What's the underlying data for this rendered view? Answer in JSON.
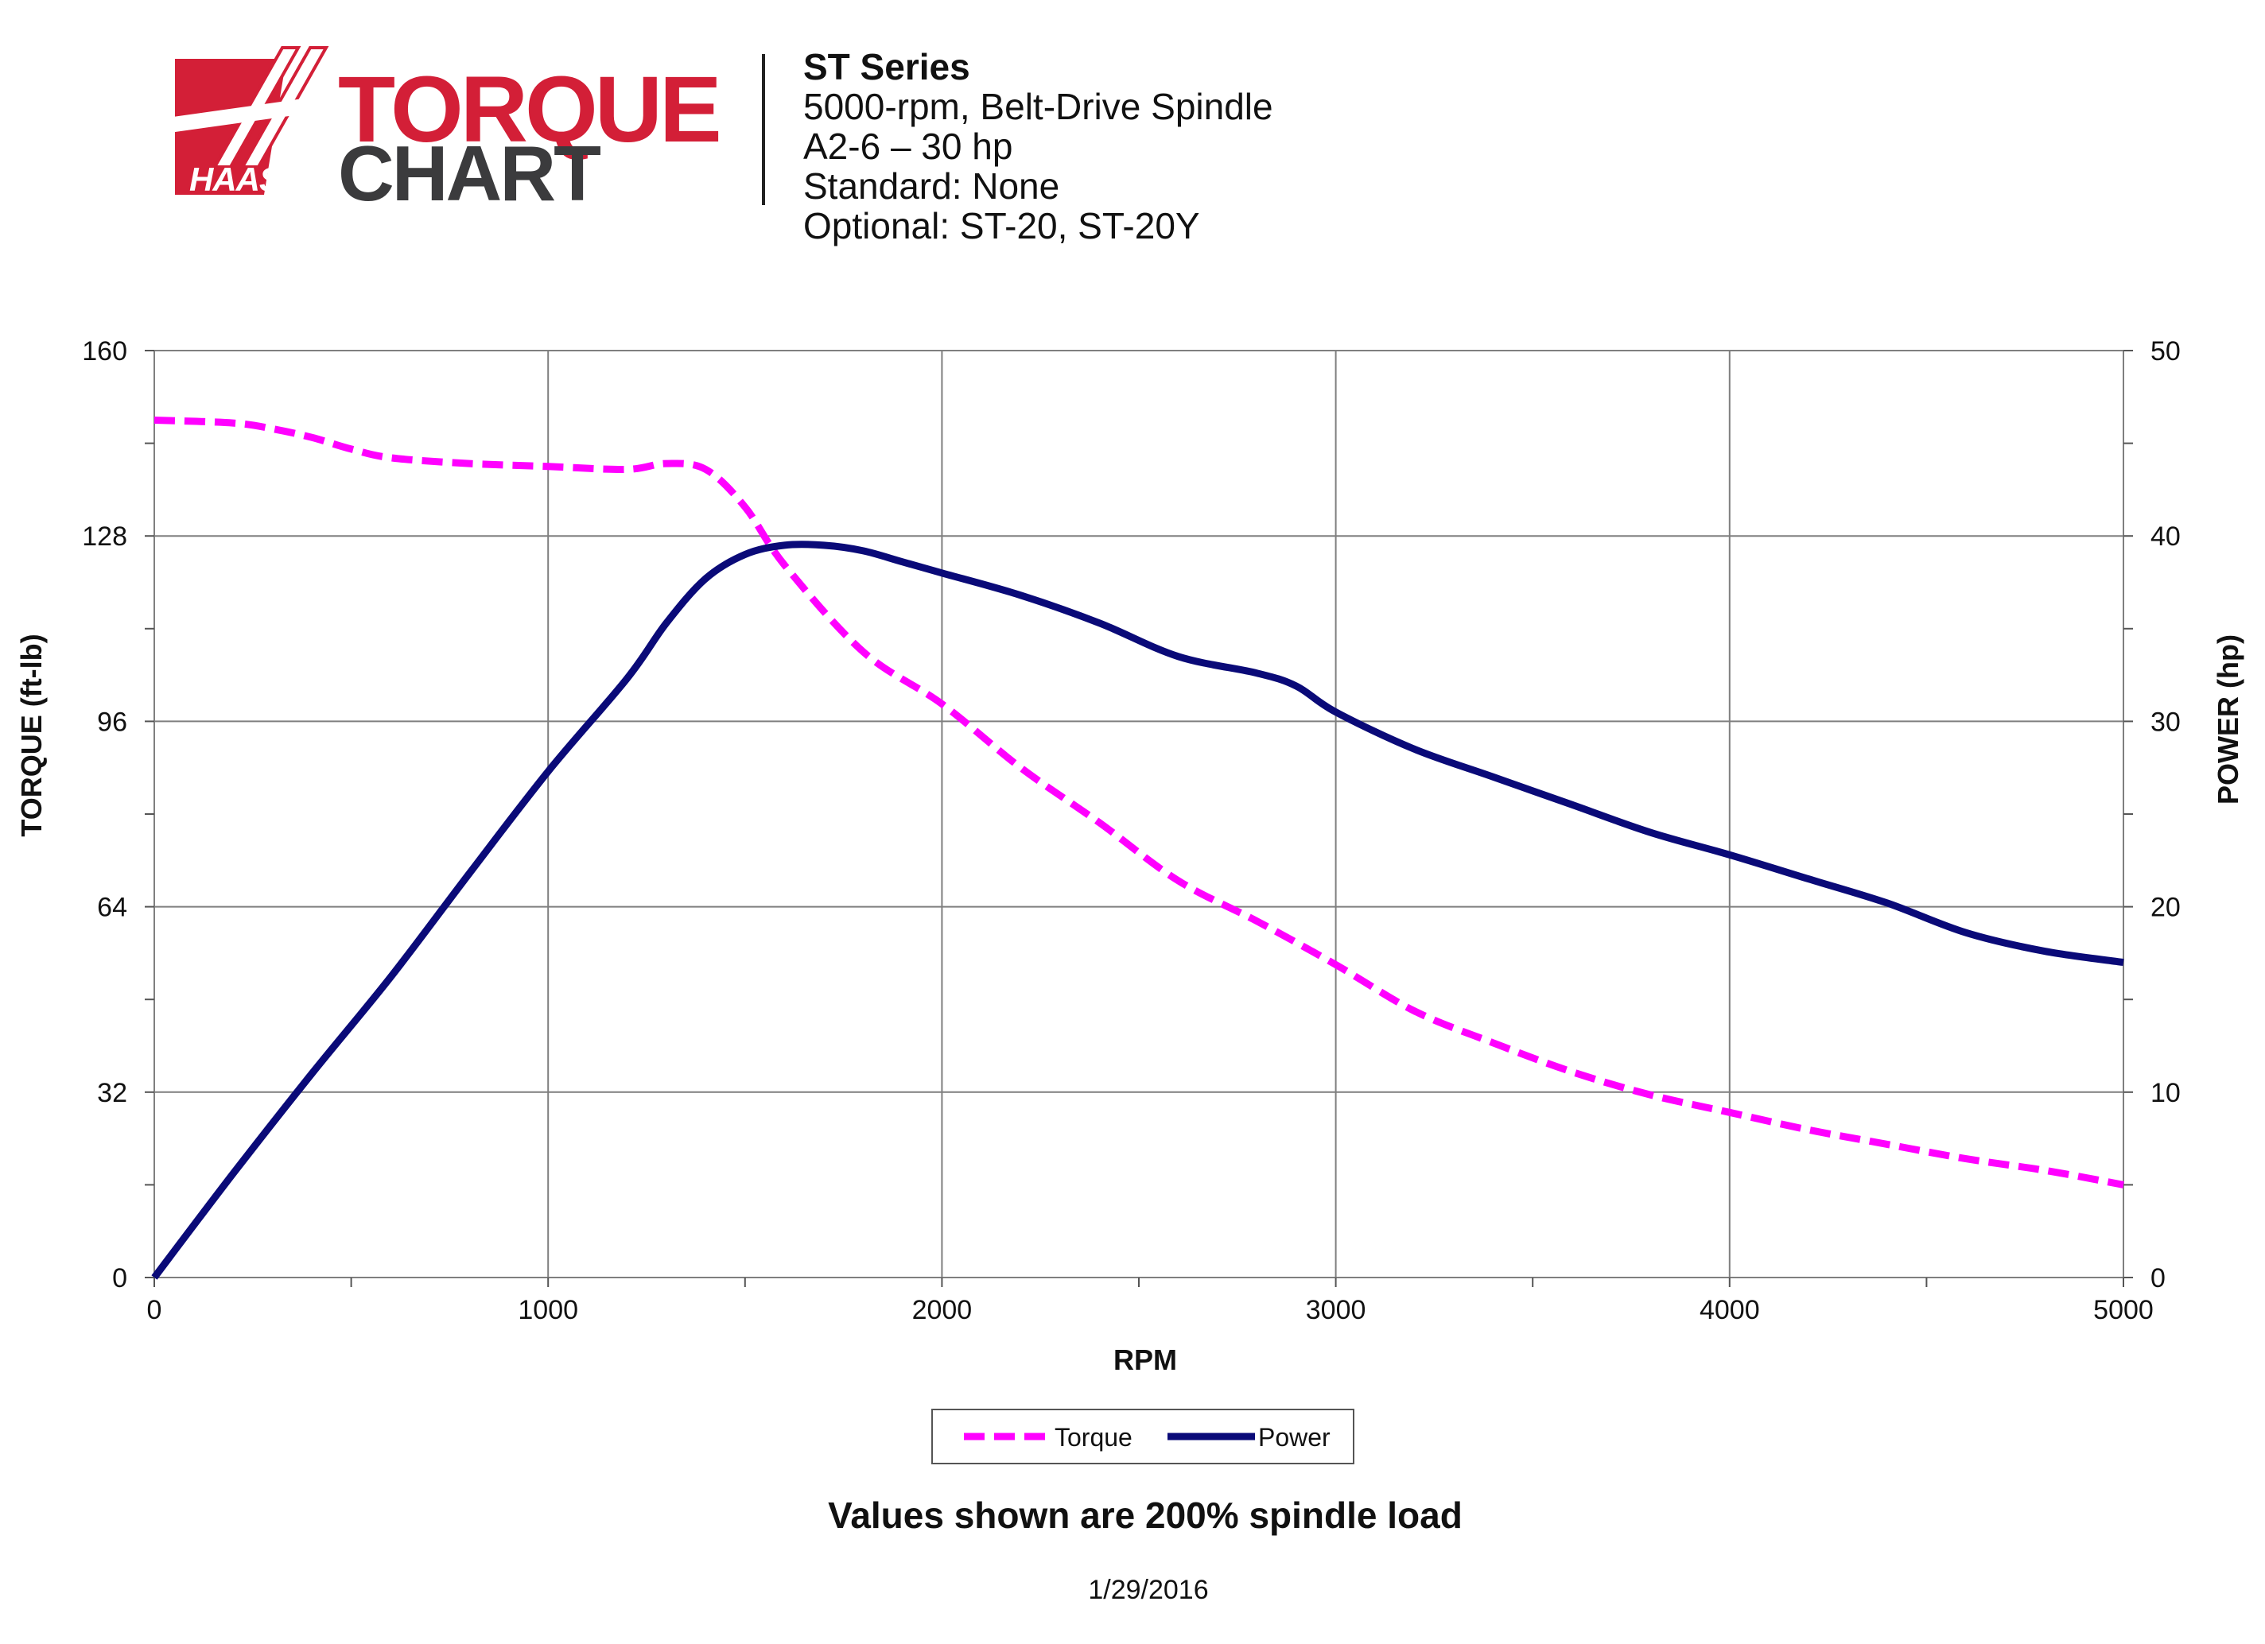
{
  "logo": {
    "brand": "HAAS",
    "word1": "TORQUE",
    "word2": "CHART",
    "colors": {
      "red": "#d31f37",
      "dark": "#3b3b3d"
    }
  },
  "header": {
    "title": "ST Series",
    "lines": [
      "5000-rpm, Belt-Drive Spindle",
      "A2-6 – 30 hp",
      "Standard: None",
      "Optional: ST-20, ST-20Y"
    ]
  },
  "footer": {
    "note": "Values shown are 200% spindle load",
    "date": "1/29/2016"
  },
  "chart_data": {
    "type": "line",
    "xlabel": "RPM",
    "ylabel": "TORQUE (ft-lb)",
    "y2label": "POWER (hp)",
    "xlim": [
      0,
      5000
    ],
    "ylim": [
      0,
      160
    ],
    "y2lim": [
      0,
      50
    ],
    "x_ticks": [
      0,
      1000,
      2000,
      3000,
      4000,
      5000
    ],
    "y_ticks": [
      0,
      32,
      64,
      96,
      128,
      160
    ],
    "y2_ticks": [
      0,
      10,
      20,
      30,
      40,
      50
    ],
    "grid": true,
    "legend_position": "bottom-center",
    "series": [
      {
        "name": "Torque",
        "axis": "left",
        "color": "#ff00ff",
        "dash": true,
        "x": [
          0,
          200,
          300,
          400,
          500,
          600,
          800,
          1000,
          1200,
          1300,
          1400,
          1500,
          1600,
          1800,
          2000,
          2200,
          2400,
          2600,
          2800,
          3000,
          3200,
          3400,
          3600,
          3800,
          4000,
          4200,
          4400,
          4600,
          4800,
          5000
        ],
        "values": [
          148,
          147.5,
          146.5,
          145,
          143,
          141.5,
          140.5,
          140,
          139.5,
          140.5,
          139.5,
          133,
          123,
          108,
          99,
          88,
          78.5,
          68.5,
          61.5,
          54,
          46,
          40.5,
          35.5,
          31.5,
          28.5,
          25.5,
          23,
          20.5,
          18.5,
          16
        ]
      },
      {
        "name": "Power",
        "axis": "right",
        "color": "#0a0a78",
        "dash": false,
        "x": [
          0,
          200,
          400,
          600,
          800,
          1000,
          1200,
          1300,
          1400,
          1500,
          1600,
          1700,
          1800,
          1900,
          2000,
          2200,
          2400,
          2600,
          2800,
          2900,
          3000,
          3200,
          3400,
          3600,
          3800,
          4000,
          4200,
          4400,
          4600,
          4800,
          5000
        ],
        "values": [
          0,
          5.6,
          11,
          16.2,
          21.8,
          27.3,
          32.3,
          35.3,
          37.7,
          39,
          39.5,
          39.5,
          39.2,
          38.6,
          38,
          36.8,
          35.3,
          33.5,
          32.6,
          31.9,
          30.5,
          28.5,
          27,
          25.5,
          24,
          22.8,
          21.5,
          20.2,
          18.6,
          17.6,
          17
        ]
      }
    ]
  }
}
